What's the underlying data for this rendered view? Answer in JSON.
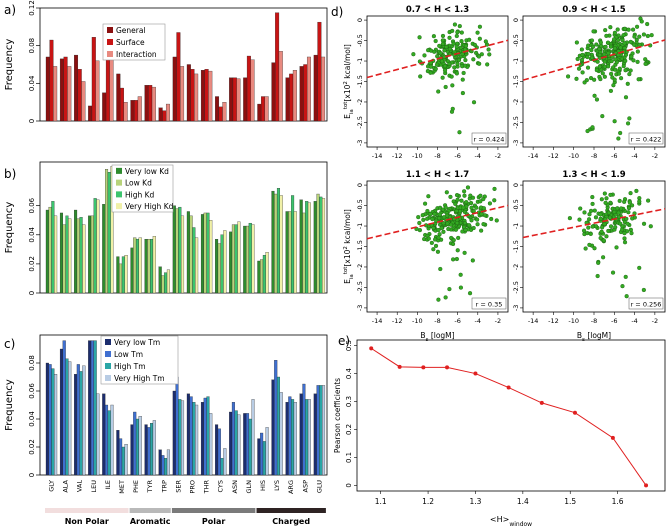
{
  "panel_labels": {
    "a": "a)",
    "b": "b)",
    "c": "c)",
    "d": "d)",
    "e": "e)"
  },
  "colors": {
    "general": "#8b1010",
    "surface": "#c81414",
    "interaction": "#e88a80",
    "kd_vlow": "#2e8b2e",
    "kd_low": "#b8d37a",
    "kd_high": "#3cc46e",
    "kd_vhigh": "#f0f0a8",
    "tm_vlow": "#1c2d6e",
    "tm_low": "#3f6fd0",
    "tm_high": "#2aa6a6",
    "tm_vhigh": "#b8cce4",
    "scatter_point": "#33aa22",
    "scatter_edge": "#1a5a10",
    "fit_line": "#e02020",
    "line_e": "#e02020",
    "group_nonpolar": "#f2dede",
    "group_aromatic": "#b9b9b9",
    "group_polar": "#7a7a7a",
    "group_charged": "#2e2323"
  },
  "amino_acids": [
    "GLY",
    "ALA",
    "VAL",
    "LEU",
    "ILE",
    "MET",
    "PHE",
    "TYR",
    "TRP",
    "SER",
    "PRO",
    "THR",
    "CYS",
    "ASN",
    "GLN",
    "HIS",
    "LYS",
    "ARG",
    "ASP",
    "GLU"
  ],
  "groups": [
    {
      "label": "Non Polar",
      "from": 0,
      "to": 5
    },
    {
      "label": "Aromatic",
      "from": 6,
      "to": 8
    },
    {
      "label": "Polar",
      "from": 9,
      "to": 14
    },
    {
      "label": "Charged",
      "from": 15,
      "to": 19
    }
  ],
  "chart_data": [
    {
      "id": "a",
      "type": "bar",
      "ylabel": "Frequency",
      "ylim": [
        0,
        0.12
      ],
      "yticks": [
        0,
        0.04,
        0.08,
        0.12
      ],
      "ytick_labels": [
        "0",
        "0.04",
        "0.08",
        "0.12"
      ],
      "legend_position": "top-center",
      "series": [
        {
          "name": "General",
          "values": [
            0.068,
            0.066,
            0.07,
            0.016,
            0.03,
            0.05,
            0.022,
            0.038,
            0.014,
            0.068,
            0.06,
            0.054,
            0.026,
            0.046,
            0.046,
            0.018,
            0.062,
            0.046,
            0.058,
            0.07
          ]
        },
        {
          "name": "Surface",
          "values": [
            0.086,
            0.068,
            0.055,
            0.089,
            0.088,
            0.035,
            0.022,
            0.038,
            0.011,
            0.094,
            0.055,
            0.055,
            0.015,
            0.046,
            0.069,
            0.026,
            0.115,
            0.05,
            0.06,
            0.105
          ]
        },
        {
          "name": "Interaction",
          "values": [
            0.058,
            0.058,
            0.042,
            0.064,
            0.066,
            0.02,
            0.026,
            0.036,
            0.018,
            0.058,
            0.05,
            0.053,
            0.02,
            0.045,
            0.065,
            0.026,
            0.074,
            0.054,
            0.068,
            0.068
          ]
        }
      ]
    },
    {
      "id": "b",
      "type": "bar",
      "ylabel": "Frequency",
      "ylim": [
        0,
        0.09
      ],
      "yticks": [
        0,
        0.02,
        0.04,
        0.06
      ],
      "ytick_labels": [
        "0",
        "0.02",
        "0.04",
        "0.06"
      ],
      "legend_position": "top-center",
      "series": [
        {
          "name": "Very low Kd",
          "values": [
            0.057,
            0.055,
            0.057,
            0.053,
            0.061,
            0.025,
            0.031,
            0.037,
            0.018,
            0.06,
            0.056,
            0.054,
            0.037,
            0.042,
            0.046,
            0.022,
            0.07,
            0.056,
            0.064,
            0.063
          ]
        },
        {
          "name": "Low Kd",
          "values": [
            0.059,
            0.047,
            0.051,
            0.053,
            0.085,
            0.02,
            0.038,
            0.037,
            0.012,
            0.058,
            0.053,
            0.055,
            0.034,
            0.047,
            0.046,
            0.023,
            0.068,
            0.056,
            0.055,
            0.068
          ]
        },
        {
          "name": "High Kd",
          "values": [
            0.063,
            0.053,
            0.052,
            0.065,
            0.083,
            0.025,
            0.037,
            0.037,
            0.014,
            0.059,
            0.045,
            0.055,
            0.04,
            0.047,
            0.048,
            0.026,
            0.072,
            0.067,
            0.063,
            0.066
          ]
        },
        {
          "name": "Very High Kd",
          "values": [
            0.053,
            0.051,
            0.047,
            0.064,
            0.087,
            0.026,
            0.038,
            0.039,
            0.016,
            0.053,
            0.038,
            0.05,
            0.043,
            0.049,
            0.047,
            0.028,
            0.067,
            0.056,
            0.062,
            0.065
          ]
        }
      ]
    },
    {
      "id": "c",
      "type": "bar",
      "ylabel": "Frequency",
      "ylim": [
        0,
        0.1
      ],
      "yticks": [
        0,
        0.02,
        0.04,
        0.06,
        0.08
      ],
      "ytick_labels": [
        "0",
        "0.02",
        "0.04",
        "0.06",
        "0.08"
      ],
      "legend_position": "top-center",
      "series": [
        {
          "name": "Very low Tm",
          "values": [
            0.08,
            0.09,
            0.072,
            0.096,
            0.058,
            0.032,
            0.036,
            0.036,
            0.018,
            0.06,
            0.058,
            0.052,
            0.036,
            0.045,
            0.044,
            0.026,
            0.068,
            0.052,
            0.058,
            0.058
          ]
        },
        {
          "name": "Low Tm",
          "values": [
            0.079,
            0.096,
            0.079,
            0.096,
            0.05,
            0.026,
            0.045,
            0.034,
            0.014,
            0.07,
            0.056,
            0.055,
            0.033,
            0.052,
            0.044,
            0.03,
            0.082,
            0.056,
            0.065,
            0.064
          ]
        },
        {
          "name": "High Tm",
          "values": [
            0.076,
            0.083,
            0.074,
            0.096,
            0.046,
            0.02,
            0.04,
            0.037,
            0.012,
            0.054,
            0.052,
            0.056,
            0.012,
            0.046,
            0.04,
            0.024,
            0.07,
            0.054,
            0.054,
            0.064
          ]
        },
        {
          "name": "Very High Tm",
          "values": [
            0.072,
            0.081,
            0.078,
            0.058,
            0.05,
            0.022,
            0.042,
            0.039,
            0.018,
            0.053,
            0.05,
            0.044,
            0.019,
            0.043,
            0.054,
            0.034,
            0.059,
            0.052,
            0.054,
            0.064
          ]
        }
      ]
    },
    {
      "id": "d1",
      "type": "scatter",
      "title": "0.7 < H < 1.3",
      "r_label": "r = 0.424",
      "xlim": [
        -15,
        -1
      ],
      "ylim": [
        -3.1,
        0.1
      ],
      "xticks": [
        -14,
        -12,
        -10,
        -8,
        -6,
        -4,
        -2
      ],
      "yticks": [
        0,
        -0.5,
        -1,
        -1.5,
        -2,
        -2.5,
        -3
      ],
      "fit": {
        "slope": 0.065,
        "intercept": -0.45
      },
      "cloud": {
        "center_x": -6.5,
        "center_y": -0.85,
        "spread_x": 2.2,
        "spread_y": 0.45,
        "n": 190,
        "seed": 11
      }
    },
    {
      "id": "d2",
      "type": "scatter",
      "title": "0.9 < H < 1.5",
      "r_label": "r = 0.422",
      "xlim": [
        -15,
        -1
      ],
      "ylim": [
        -3.1,
        0.1
      ],
      "xticks": [
        -14,
        -12,
        -10,
        -8,
        -6,
        -4,
        -2
      ],
      "yticks": [
        0,
        -0.5,
        -1,
        -1.5,
        -2,
        -2.5,
        -3
      ],
      "fit": {
        "slope": 0.07,
        "intercept": -0.45
      },
      "cloud": {
        "center_x": -6.2,
        "center_y": -0.85,
        "spread_x": 2.3,
        "spread_y": 0.45,
        "n": 260,
        "seed": 23
      }
    },
    {
      "id": "d3",
      "type": "scatter",
      "title": "1.1 < H < 1.7",
      "r_label": "r = 0.35",
      "xlim": [
        -15,
        -1
      ],
      "ylim": [
        -3.1,
        0.1
      ],
      "xticks": [
        -14,
        -12,
        -10,
        -8,
        -6,
        -4,
        -2
      ],
      "yticks": [
        0,
        -0.5,
        -1,
        -1.5,
        -2,
        -2.5,
        -3
      ],
      "fit": {
        "slope": 0.058,
        "intercept": -0.4
      },
      "cloud": {
        "center_x": -6.2,
        "center_y": -0.8,
        "spread_x": 2.3,
        "spread_y": 0.42,
        "n": 250,
        "seed": 37
      }
    },
    {
      "id": "d4",
      "type": "scatter",
      "title": "1.3 < H < 1.9",
      "r_label": "r = 0.256",
      "xlim": [
        -15,
        -1
      ],
      "ylim": [
        -3.1,
        0.1
      ],
      "xticks": [
        -14,
        -12,
        -10,
        -8,
        -6,
        -4,
        -2
      ],
      "yticks": [
        0,
        -0.5,
        -1,
        -1.5,
        -2,
        -2.5,
        -3
      ],
      "fit": {
        "slope": 0.05,
        "intercept": -0.45
      },
      "cloud": {
        "center_x": -6.4,
        "center_y": -0.85,
        "spread_x": 2.2,
        "spread_y": 0.45,
        "n": 160,
        "seed": 51
      }
    },
    {
      "id": "e",
      "type": "line",
      "xlabel": "<H>window",
      "ylabel": "Pearson coefficients",
      "xlim": [
        1.05,
        1.7
      ],
      "ylim": [
        -0.02,
        0.52
      ],
      "xticks": [
        1.1,
        1.2,
        1.3,
        1.4,
        1.5,
        1.6
      ],
      "yticks": [
        0,
        0.1,
        0.2,
        0.3,
        0.4,
        0.5
      ],
      "x": [
        1.08,
        1.14,
        1.19,
        1.24,
        1.3,
        1.37,
        1.44,
        1.51,
        1.59,
        1.66
      ],
      "y": [
        0.49,
        0.424,
        0.422,
        0.422,
        0.4,
        0.35,
        0.295,
        0.26,
        0.17,
        0.0
      ]
    }
  ],
  "scatter_axis_labels": {
    "ylabel_main": "E",
    "ylabel_sub": "ia",
    "ylabel_sup": "tot",
    "ylabel_unit": "[x10",
    "ylabel_unit_sup": "2",
    "ylabel_unit_end": " kcal/mol]",
    "xlabel_main": "B",
    "xlabel_sub": "s",
    "xlabel_unit": " [logM]"
  },
  "line_axis_labels": {
    "xlabel_main": "<H>",
    "xlabel_sub": "window",
    "ylabel": "Pearson coefficients"
  }
}
